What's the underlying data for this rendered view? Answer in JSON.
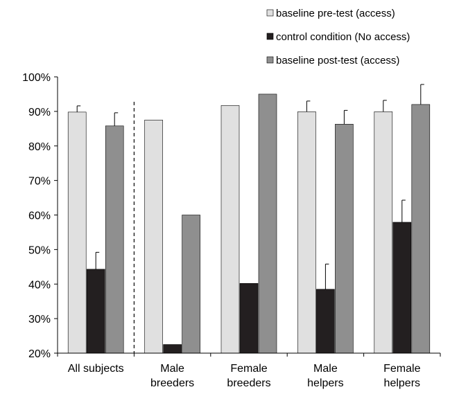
{
  "chart_data": {
    "type": "bar",
    "categories": [
      [
        "All subjects"
      ],
      [
        "Male",
        "breeders"
      ],
      [
        "Female",
        "breeders"
      ],
      [
        "Male",
        "helpers"
      ],
      [
        "Female",
        "helpers"
      ]
    ],
    "series": [
      {
        "name": "baseline pre-test (access)",
        "color": "#e0e0e0",
        "values": [
          89.8,
          87.5,
          91.7,
          89.9,
          89.9
        ],
        "errors": [
          1.8,
          null,
          null,
          3.1,
          3.3
        ]
      },
      {
        "name": "control condition (No access)",
        "color": "#231f20",
        "values": [
          44.3,
          22.5,
          40.2,
          38.5,
          57.9
        ],
        "errors": [
          4.9,
          null,
          null,
          7.3,
          6.4
        ]
      },
      {
        "name": "baseline post-test (access)",
        "color": "#8f8f8f",
        "values": [
          85.8,
          60.0,
          95.0,
          86.3,
          92.0
        ],
        "errors": [
          3.8,
          null,
          null,
          4.0,
          5.8
        ]
      }
    ],
    "y_tick_labels": [
      "20%",
      "30%",
      "40%",
      "50%",
      "60%",
      "70%",
      "80%",
      "90%",
      "100%"
    ],
    "ylim": [
      20,
      100
    ],
    "legend_position": "top-right",
    "separator_after_category": 0,
    "grid": false
  }
}
